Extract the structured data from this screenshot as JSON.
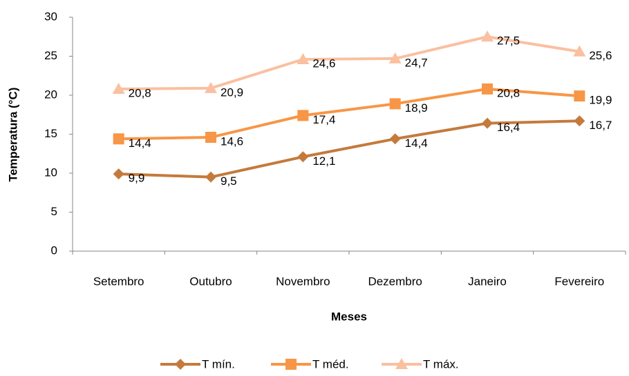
{
  "chart_data": {
    "type": "line",
    "x_label": "Meses",
    "y_label": "Temperatura (°C)",
    "categories": [
      "Setembro",
      "Outubro",
      "Novembro",
      "Dezembro",
      "Janeiro",
      "Fevereiro"
    ],
    "series": [
      {
        "name": "T mín.",
        "color": "#c47a3c",
        "marker": "diamond",
        "values": [
          9.9,
          9.5,
          12.1,
          14.4,
          16.4,
          16.7
        ],
        "value_labels": [
          "9,9",
          "9,5",
          "12,1",
          "14,4",
          "16,4",
          "16,7"
        ]
      },
      {
        "name": "T méd.",
        "color": "#f79646",
        "marker": "square",
        "values": [
          14.4,
          14.6,
          17.4,
          18.9,
          20.8,
          19.9
        ],
        "value_labels": [
          "14,4",
          "14,6",
          "17,4",
          "18,9",
          "20,8",
          "19,9"
        ]
      },
      {
        "name": "T máx.",
        "color": "#fac0a0",
        "marker": "triangle",
        "values": [
          20.8,
          20.9,
          24.6,
          24.7,
          27.5,
          25.6
        ],
        "value_labels": [
          "20,8",
          "20,9",
          "24,6",
          "24,7",
          "27,5",
          "25,6"
        ]
      }
    ],
    "ylim": [
      0,
      30
    ],
    "yticks": [
      0,
      5,
      10,
      15,
      20,
      25,
      30
    ],
    "legend": "bottom"
  }
}
